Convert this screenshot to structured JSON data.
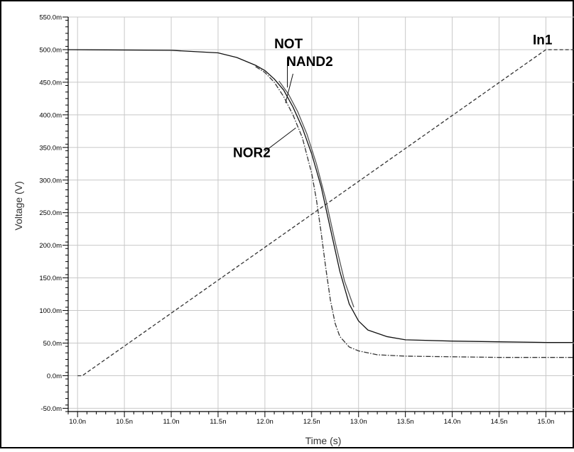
{
  "chart_data": {
    "type": "line",
    "title": "",
    "xlabel": "Time (s)",
    "ylabel": "Voltage (V)",
    "xlim": [
      9.9,
      15.3
    ],
    "ylim": [
      -55,
      550
    ],
    "grid": true,
    "x_ticks": [
      {
        "v": 10.0,
        "label": "10.0n"
      },
      {
        "v": 10.5,
        "label": "10.5n"
      },
      {
        "v": 11.0,
        "label": "11.0n"
      },
      {
        "v": 11.5,
        "label": "11.5n"
      },
      {
        "v": 12.0,
        "label": "12.0n"
      },
      {
        "v": 12.5,
        "label": "12.5n"
      },
      {
        "v": 13.0,
        "label": "13.0n"
      },
      {
        "v": 13.5,
        "label": "13.5n"
      },
      {
        "v": 14.0,
        "label": "14.0n"
      },
      {
        "v": 14.5,
        "label": "14.5n"
      },
      {
        "v": 15.0,
        "label": "15.0n"
      }
    ],
    "y_ticks": [
      {
        "v": 550,
        "label": "550.0m"
      },
      {
        "v": 500,
        "label": "500.0m"
      },
      {
        "v": 450,
        "label": "450.0m"
      },
      {
        "v": 400,
        "label": "400.0m"
      },
      {
        "v": 350,
        "label": "350.0m"
      },
      {
        "v": 300,
        "label": "300.0m"
      },
      {
        "v": 250,
        "label": "250.0m"
      },
      {
        "v": 200,
        "label": "200.0m"
      },
      {
        "v": 150,
        "label": "150.0m"
      },
      {
        "v": 100,
        "label": "100.0m"
      },
      {
        "v": 50,
        "label": "50.0m"
      },
      {
        "v": 0,
        "label": "0.0m"
      },
      {
        "v": -50,
        "label": "-50.0m"
      }
    ],
    "series": [
      {
        "name": "In1",
        "style": "dashed",
        "color": "#333333",
        "x": [
          10.0,
          10.05,
          15.0,
          15.3
        ],
        "y": [
          0,
          0,
          500,
          500
        ]
      },
      {
        "name": "NOT",
        "style": "solid",
        "color": "#111111",
        "x": [
          9.9,
          11.0,
          11.5,
          11.7,
          11.9,
          12.0,
          12.1,
          12.2,
          12.3,
          12.4,
          12.5,
          12.6,
          12.7,
          12.8,
          12.9,
          13.0,
          13.1,
          13.3,
          13.5,
          14.0,
          14.5,
          15.0,
          15.3
        ],
        "y": [
          500,
          499,
          495,
          488,
          476,
          468,
          455,
          438,
          412,
          380,
          340,
          290,
          225,
          160,
          110,
          84,
          70,
          60,
          55,
          53,
          52,
          51,
          51
        ]
      },
      {
        "name": "NAND2",
        "style": "solid",
        "color": "#555555",
        "x": [
          12.15,
          12.25,
          12.35,
          12.45,
          12.55,
          12.65,
          12.75,
          12.85,
          12.95
        ],
        "y": [
          452,
          432,
          405,
          370,
          325,
          270,
          205,
          145,
          105
        ]
      },
      {
        "name": "NOR2",
        "style": "dashdot",
        "color": "#333333",
        "x": [
          11.9,
          12.0,
          12.1,
          12.2,
          12.3,
          12.4,
          12.5,
          12.55,
          12.6,
          12.65,
          12.7,
          12.75,
          12.8,
          12.9,
          13.0,
          13.2,
          13.5,
          14.0,
          14.5,
          15.0,
          15.3
        ],
        "y": [
          474,
          465,
          450,
          428,
          400,
          365,
          310,
          270,
          220,
          165,
          115,
          80,
          60,
          44,
          38,
          32,
          30,
          29,
          28,
          28,
          28
        ]
      }
    ],
    "annotations": [
      {
        "text": "NOT",
        "x": 12.1,
        "y": 502
      },
      {
        "text": "NAND2",
        "x": 12.23,
        "y": 475
      },
      {
        "text": "NOR2",
        "x": 11.66,
        "y": 335
      },
      {
        "text": "In1",
        "x": 14.86,
        "y": 508
      }
    ]
  }
}
